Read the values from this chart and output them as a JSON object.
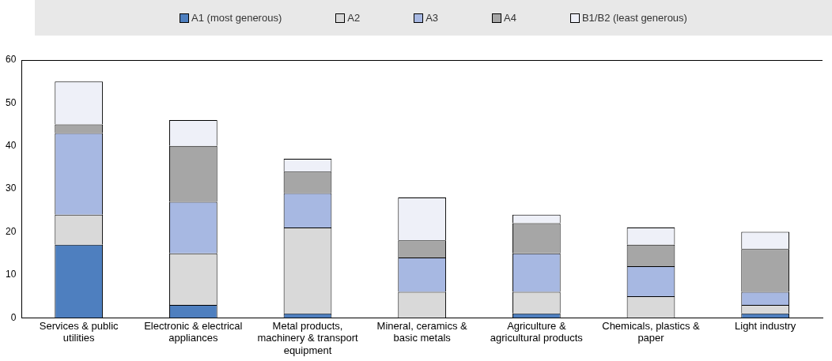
{
  "chart_data": {
    "type": "bar",
    "stacked": true,
    "legend": "top",
    "grid": false,
    "categories": [
      "Services & public utilities",
      "Electronic & electrical appliances",
      "Metal products, machinery & transport equipment",
      "Mineral, ceramics & basic metals",
      "Agriculture & agricultural products",
      "Chemicals, plastics & paper",
      "Light industry"
    ],
    "series": [
      {
        "name": "A1 (most generous)",
        "color": "#4e7fbf",
        "values": [
          17,
          3,
          1,
          0,
          1,
          0,
          1
        ]
      },
      {
        "name": "A2",
        "color": "#d9d9d9",
        "values": [
          7,
          12,
          20,
          6,
          5,
          5,
          2
        ]
      },
      {
        "name": "A3",
        "color": "#a7b8e2",
        "values": [
          19,
          12,
          8,
          8,
          9,
          7,
          3
        ]
      },
      {
        "name": "A4",
        "color": "#a6a6a6",
        "values": [
          2,
          13,
          5,
          4,
          7,
          5,
          10
        ]
      },
      {
        "name": "B1/B2 (least generous)",
        "color": "#eef0f8",
        "values": [
          10,
          6,
          3,
          10,
          2,
          4,
          4
        ]
      }
    ],
    "ylim": [
      0,
      60
    ],
    "yticks": [
      0,
      10,
      20,
      30,
      40,
      50,
      60
    ]
  }
}
